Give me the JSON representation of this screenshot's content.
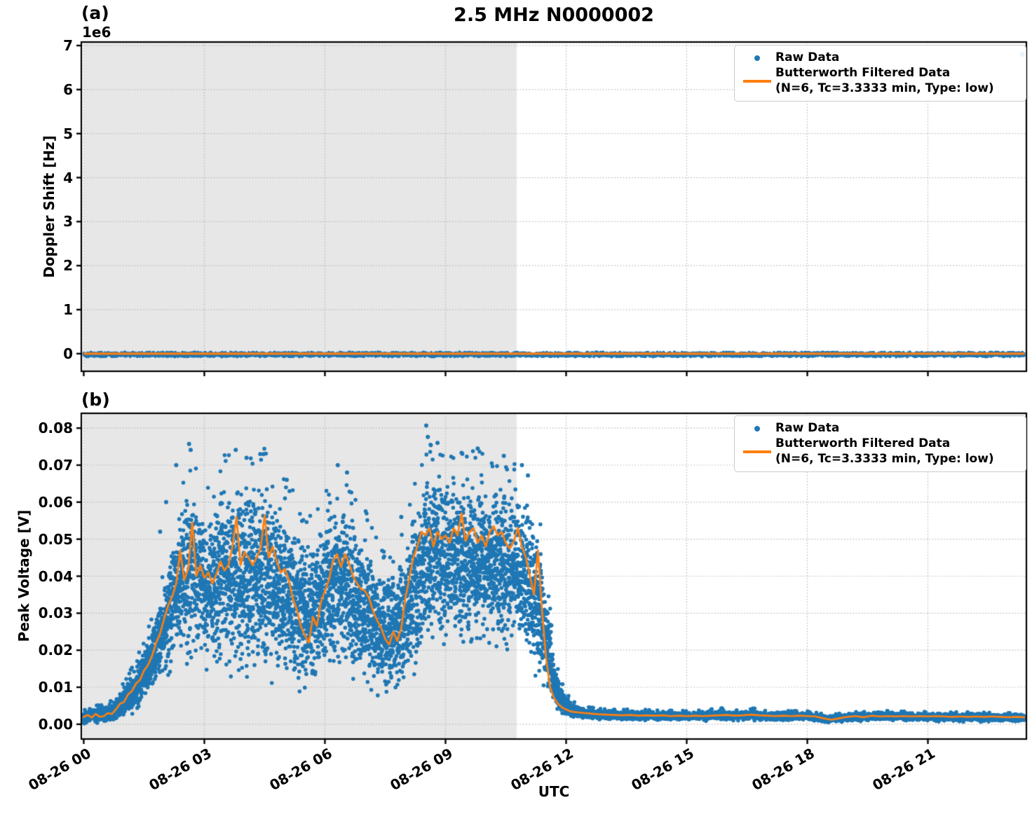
{
  "figure": {
    "title": "2.5 MHz N0000002",
    "xlabel": "UTC",
    "panel_a_label": "(a)",
    "panel_b_label": "(b)",
    "offset_text": "1e6",
    "colors": {
      "raw": "#1f77b4",
      "filtered": "#ff7f0e",
      "shade": "#e7e7e7",
      "grid": "#b9b9b9",
      "spine": "#000000",
      "legend_edge": "#cccccc"
    },
    "legend": {
      "raw_label": "Raw Data",
      "filtered_label_line1": "Butterworth Filtered Data",
      "filtered_label_line2": "(N=6, Tc=3.3333 min, Type: low)"
    },
    "xlim_hours": [
      -0.06,
      23.45
    ],
    "xtick_hours": [
      0,
      3,
      6,
      9,
      12,
      15,
      18,
      21
    ],
    "xtick_labels": [
      "08-26 00",
      "08-26 03",
      "08-26 06",
      "08-26 09",
      "08-26 12",
      "08-26 15",
      "08-26 18",
      "08-26 21"
    ]
  },
  "chart_data": [
    {
      "panel": "a",
      "type": "scatter",
      "ylabel": "Doppler Shift [Hz]",
      "y_offset_text": "1e6",
      "ylim": [
        -400000,
        7080000
      ],
      "ytick_values": [
        0,
        1000000,
        2000000,
        3000000,
        4000000,
        5000000,
        6000000,
        7000000
      ],
      "ytick_labels": [
        "0",
        "1",
        "2",
        "3",
        "4",
        "5",
        "6",
        "7"
      ],
      "shade_region_hours": [
        0,
        10.77
      ],
      "grid": "dotted",
      "legend_position": "upper right",
      "series": [
        {
          "name": "Raw Data",
          "style": "scatter",
          "color": "#1f77b4",
          "band": {
            "t_start": 0,
            "t_end": 23.4,
            "lo": -80000,
            "hi": 45000
          },
          "outlier_points": [
            [
              23.35,
              6800000
            ]
          ]
        },
        {
          "name": "Butterworth Filtered Data (N=6, Tc=3.3333 min, Type: low)",
          "style": "line",
          "color": "#ff7f0e",
          "constant_value": 0,
          "t_start": 0,
          "t_end": 23.4
        }
      ]
    },
    {
      "panel": "b",
      "type": "scatter",
      "ylabel": "Peak Voltage [V]",
      "ylim": [
        -0.004,
        0.084
      ],
      "ytick_values": [
        0,
        0.01,
        0.02,
        0.03,
        0.04,
        0.05,
        0.06,
        0.07,
        0.08
      ],
      "ytick_labels": [
        "0.00",
        "0.01",
        "0.02",
        "0.03",
        "0.04",
        "0.05",
        "0.06",
        "0.07",
        "0.08"
      ],
      "shade_region_hours": [
        0,
        10.77
      ],
      "grid": "dotted",
      "legend_position": "upper right",
      "series": [
        {
          "name": "Raw Data",
          "style": "scatter",
          "color": "#1f77b4",
          "envelope": [
            [
              0.0,
              0.0,
              0.0045
            ],
            [
              0.25,
              0.0,
              0.005
            ],
            [
              0.5,
              0.0,
              0.005
            ],
            [
              0.75,
              0.0005,
              0.0065
            ],
            [
              1.0,
              0.001,
              0.011
            ],
            [
              1.25,
              0.0025,
              0.016
            ],
            [
              1.5,
              0.005,
              0.022
            ],
            [
              1.75,
              0.008,
              0.03
            ],
            [
              2.0,
              0.011,
              0.042
            ],
            [
              2.25,
              0.014,
              0.055
            ],
            [
              2.5,
              0.014,
              0.065
            ],
            [
              2.75,
              0.012,
              0.07
            ],
            [
              3.0,
              0.011,
              0.062
            ],
            [
              3.25,
              0.01,
              0.065
            ],
            [
              3.5,
              0.011,
              0.07
            ],
            [
              3.75,
              0.01,
              0.072
            ],
            [
              4.0,
              0.01,
              0.068
            ],
            [
              4.25,
              0.008,
              0.07
            ],
            [
              4.5,
              0.009,
              0.072
            ],
            [
              4.75,
              0.008,
              0.068
            ],
            [
              5.0,
              0.008,
              0.064
            ],
            [
              5.25,
              0.007,
              0.06
            ],
            [
              5.5,
              0.005,
              0.052
            ],
            [
              5.75,
              0.007,
              0.056
            ],
            [
              6.0,
              0.009,
              0.06
            ],
            [
              6.25,
              0.011,
              0.065
            ],
            [
              6.5,
              0.01,
              0.064
            ],
            [
              6.75,
              0.008,
              0.06
            ],
            [
              7.0,
              0.007,
              0.056
            ],
            [
              7.25,
              0.005,
              0.05
            ],
            [
              7.5,
              0.004,
              0.044
            ],
            [
              7.75,
              0.0045,
              0.046
            ],
            [
              8.0,
              0.007,
              0.054
            ],
            [
              8.25,
              0.013,
              0.064
            ],
            [
              8.5,
              0.018,
              0.072
            ],
            [
              8.75,
              0.018,
              0.074
            ],
            [
              9.0,
              0.017,
              0.07
            ],
            [
              9.25,
              0.018,
              0.072
            ],
            [
              9.5,
              0.017,
              0.07
            ],
            [
              9.75,
              0.018,
              0.072
            ],
            [
              10.0,
              0.017,
              0.07
            ],
            [
              10.25,
              0.016,
              0.069
            ],
            [
              10.5,
              0.015,
              0.068
            ],
            [
              10.75,
              0.014,
              0.068
            ],
            [
              11.0,
              0.012,
              0.065
            ],
            [
              11.25,
              0.01,
              0.06
            ],
            [
              11.4,
              0.008,
              0.05
            ],
            [
              11.55,
              0.005,
              0.035
            ],
            [
              11.7,
              0.003,
              0.02
            ],
            [
              11.85,
              0.002,
              0.012
            ],
            [
              12.0,
              0.0015,
              0.008
            ],
            [
              12.25,
              0.001,
              0.0055
            ],
            [
              12.5,
              0.001,
              0.0045
            ],
            [
              13.0,
              0.0008,
              0.004
            ],
            [
              14.0,
              0.0008,
              0.0038
            ],
            [
              15.0,
              0.0008,
              0.0035
            ],
            [
              15.9,
              0.0008,
              0.0042
            ],
            [
              16.1,
              0.0008,
              0.0036
            ],
            [
              16.7,
              0.0008,
              0.0042
            ],
            [
              17.0,
              0.0008,
              0.0035
            ],
            [
              18.0,
              0.0008,
              0.0035
            ],
            [
              18.5,
              0.0002,
              0.0025
            ],
            [
              18.8,
              0.0004,
              0.0028
            ],
            [
              19.0,
              0.0006,
              0.0032
            ],
            [
              20.0,
              0.0008,
              0.0035
            ],
            [
              21.0,
              0.0006,
              0.0032
            ],
            [
              22.0,
              0.0006,
              0.0032
            ],
            [
              23.0,
              0.0005,
              0.003
            ],
            [
              23.4,
              0.0005,
              0.003
            ]
          ],
          "outlier_points": [
            [
              2.62,
              0.0757
            ],
            [
              2.66,
              0.0741
            ],
            [
              2.3,
              0.07
            ],
            [
              3.78,
              0.0741
            ],
            [
              4.05,
              0.072
            ],
            [
              4.47,
              0.073
            ],
            [
              5.05,
              0.066
            ],
            [
              6.32,
              0.07
            ],
            [
              6.55,
              0.068
            ],
            [
              8.52,
              0.0807
            ],
            [
              8.56,
              0.0776
            ],
            [
              8.8,
              0.076
            ],
            [
              9.4,
              0.0733
            ],
            [
              9.8,
              0.0745
            ],
            [
              10.45,
              0.0725
            ],
            [
              10.9,
              0.07
            ],
            [
              11.05,
              0.0672
            ],
            [
              2.05,
              0.06
            ],
            [
              1.9,
              0.052
            ],
            [
              7.9,
              0.056
            ]
          ]
        },
        {
          "name": "Butterworth Filtered Data (N=6, Tc=3.3333 min, Type: low)",
          "style": "line",
          "color": "#ff7f0e",
          "segments": [
            {
              "t0": 0.0,
              "dt": 0.1,
              "values": [
                0.002,
                0.0025,
                0.0018,
                0.0028,
                0.002,
                0.0022,
                0.003,
                0.0028,
                0.004,
                0.0055,
                0.006,
                0.008,
                0.009,
                0.011,
                0.012,
                0.0145,
                0.016,
                0.0185,
                0.022,
                0.0245,
                0.0285,
                0.032,
                0.0345,
                0.038,
                0.047,
                0.039,
                0.042,
                0.0545,
                0.04,
                0.043,
                0.0395,
                0.041,
                0.038,
                0.0405,
                0.044,
                0.0415,
                0.043,
                0.048,
                0.056,
                0.043,
                0.0465,
                0.045,
                0.043,
                0.045,
                0.0475,
                0.0565,
                0.045,
                0.048,
                0.044,
                0.041,
                0.042,
                0.039,
                0.034,
                0.031,
                0.0265,
                0.024,
                0.022,
                0.029,
                0.0265,
                0.033,
                0.036,
                0.039,
                0.044,
                0.046,
                0.0425,
                0.046,
                0.0435,
                0.04,
                0.038,
                0.0365,
                0.036,
                0.034,
                0.0305,
                0.028,
                0.026,
                0.023,
                0.0215,
                0.025,
                0.0225,
                0.026,
                0.034,
                0.0395,
                0.045,
                0.048,
                0.052,
                0.051,
                0.053,
                0.048,
                0.052,
                0.05,
                0.051,
                0.049,
                0.053,
                0.051,
                0.057,
                0.0495,
                0.052,
                0.053,
                0.049,
                0.051,
                0.048,
                0.052,
                0.0535,
                0.051,
                0.052,
                0.049,
                0.0475,
                0.0495,
                0.053,
                0.048,
                0.045,
                0.04,
                0.035,
                0.047,
                0.031,
                0.018,
                0.01,
                0.007,
                0.0055,
                0.0045,
                0.004,
                0.0035
              ]
            },
            {
              "t0": 12.2,
              "dt": 0.2,
              "values": [
                0.0033,
                0.0031,
                0.0029,
                0.0027,
                0.0026,
                0.0025,
                0.0024,
                0.0025,
                0.0023,
                0.0024,
                0.0023,
                0.0024,
                0.0022,
                0.0023,
                0.0022,
                0.0023,
                0.0022,
                0.0023,
                0.0024,
                0.0025,
                0.0023,
                0.0024,
                0.0026,
                0.0024,
                0.0023,
                0.0022,
                0.0023,
                0.0022,
                0.0023,
                0.0022,
                0.0021,
                0.0016,
                0.0012,
                0.0016,
                0.002,
                0.0022,
                0.0019,
                0.0023,
                0.0021,
                0.0022,
                0.0021,
                0.0022,
                0.0021,
                0.0022,
                0.0021,
                0.0022,
                0.0021,
                0.002,
                0.0021,
                0.002,
                0.0021,
                0.002,
                0.0021,
                0.002,
                0.0019,
                0.002,
                0.0019
              ]
            }
          ]
        }
      ]
    }
  ]
}
